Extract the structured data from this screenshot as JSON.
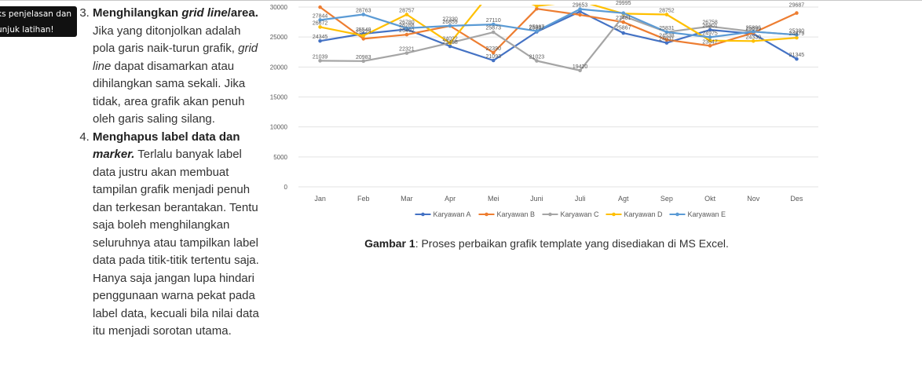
{
  "tooltip": {
    "line1": "ks penjelasan dan",
    "line2": "unjuk latihan!"
  },
  "article": {
    "item3_title": "Menghilangkan",
    "item3_title_em": "grid line",
    "item3_title_tail": "/area.",
    "item3_body_a": "Jika yang ditonjolkan adalah pola garis naik-turun grafik,",
    "item3_body_em": "grid line",
    "item3_body_b": "dapat disamarkan atau dihilangkan sama sekali. Jika tidak, area grafik akan penuh oleh garis saling silang.",
    "item4_title": "Menghapus label data dan",
    "item4_title_em": "marker.",
    "item4_body": "Terlalu banyak label data justru akan membuat tampilan grafik menjadi penuh dan terkesan berantakan. Tentu saja boleh menghilangkan seluruhnya atau tampilkan label data pada titik-titik tertentu saja. Hanya saja jangan lupa hindari penggunaan warna pekat pada label data, kecuali bila nilai data itu menjadi sorotan utama."
  },
  "caption": {
    "label": "Gambar 1",
    "text": ": Proses perbaikan grafik template yang disediakan di MS Excel."
  },
  "chart_data": {
    "type": "line",
    "categories": [
      "Jan",
      "Feb",
      "Mar",
      "Apr",
      "Mei",
      "Juni",
      "Juli",
      "Agt",
      "Sep",
      "Okt",
      "Nov",
      "Des"
    ],
    "ylim": [
      0,
      30000
    ],
    "yticks": [
      0,
      5000,
      10000,
      15000,
      20000,
      25000,
      30000
    ],
    "grid": true,
    "legend": "bottom",
    "series": [
      {
        "name": "Karyawan A",
        "color": "#4472c4",
        "values": [
          24345,
          25549,
          26288,
          23458,
          21093,
          25873,
          29258,
          25667,
          24031,
          26201,
          25535,
          21345
        ]
      },
      {
        "name": "Karyawan B",
        "color": "#ed7d31",
        "values": [
          29984,
          24707,
          25402,
          26859,
          22390,
          29710,
          28700,
          27481,
          24538,
          23547,
          25699,
          29007
        ]
      },
      {
        "name": "Karyawan C",
        "color": "#a5a5a5",
        "values": [
          21039,
          20983,
          22321,
          24022,
          25800,
          21023,
          19420,
          28500,
          25831,
          26758,
          25899,
          25380
        ]
      },
      {
        "name": "Karyawan D",
        "color": "#ffc000",
        "values": [
          26672,
          25225,
          28757,
          24000,
          33000,
          30200,
          31000,
          28900,
          28752,
          24400,
          24330,
          24879
        ]
      },
      {
        "name": "Karyawan E",
        "color": "#5b9bd5",
        "values": [
          27844,
          28763,
          26480,
          26869,
          27110,
          25987,
          29653,
          28995,
          25831,
          24975,
          25899,
          25380
        ]
      }
    ],
    "data_labels": [
      {
        "x": 0,
        "y": 27844,
        "t": "27844"
      },
      {
        "x": 0,
        "y": 26672,
        "t": "26672"
      },
      {
        "x": 0,
        "y": 24345,
        "t": "24345"
      },
      {
        "x": 0,
        "y": 21039,
        "t": "21039"
      },
      {
        "x": 1,
        "y": 28763,
        "t": "28763"
      },
      {
        "x": 1,
        "y": 25549,
        "t": "25549"
      },
      {
        "x": 1,
        "y": 25225,
        "t": "25225"
      },
      {
        "x": 1,
        "y": 20983,
        "t": "20983"
      },
      {
        "x": 2,
        "y": 28757,
        "t": "28757"
      },
      {
        "x": 2,
        "y": 26780,
        "t": "26780"
      },
      {
        "x": 2,
        "y": 26288,
        "t": "26288"
      },
      {
        "x": 2,
        "y": 25402,
        "t": "25402"
      },
      {
        "x": 2,
        "y": 22321,
        "t": "22321"
      },
      {
        "x": 3,
        "y": 27330,
        "t": "27330"
      },
      {
        "x": 3,
        "y": 26859,
        "t": "26859"
      },
      {
        "x": 3,
        "y": 24022,
        "t": "24022"
      },
      {
        "x": 3,
        "y": 23458,
        "t": "23458"
      },
      {
        "x": 4,
        "y": 27110,
        "t": "27110"
      },
      {
        "x": 4,
        "y": 25873,
        "t": "25873"
      },
      {
        "x": 4,
        "y": 22390,
        "t": "22390"
      },
      {
        "x": 4,
        "y": 21093,
        "t": "21093"
      },
      {
        "x": 5,
        "y": 25987,
        "t": "25987"
      },
      {
        "x": 5,
        "y": 25882,
        "t": "25882"
      },
      {
        "x": 5,
        "y": 21023,
        "t": "21023"
      },
      {
        "x": 6,
        "y": 29653,
        "t": "29653"
      },
      {
        "x": 6,
        "y": 19420,
        "t": "19420"
      },
      {
        "x": 7,
        "y": 29995,
        "t": "29995"
      },
      {
        "x": 7,
        "y": 27481,
        "t": "27481"
      },
      {
        "x": 7,
        "y": 25867,
        "t": "25867"
      },
      {
        "x": 8,
        "y": 28752,
        "t": "28752"
      },
      {
        "x": 8,
        "y": 25831,
        "t": "25831"
      },
      {
        "x": 8,
        "y": 24538,
        "t": "24538"
      },
      {
        "x": 8,
        "y": 24031,
        "t": "24031"
      },
      {
        "x": 9,
        "y": 26758,
        "t": "26758"
      },
      {
        "x": 9,
        "y": 26201,
        "t": "26201"
      },
      {
        "x": 9,
        "y": 24975,
        "t": "24975"
      },
      {
        "x": 9,
        "y": 23547,
        "t": "23547"
      },
      {
        "x": 10,
        "y": 25896,
        "t": "25896"
      },
      {
        "x": 10,
        "y": 25699,
        "t": "25699"
      },
      {
        "x": 10,
        "y": 24330,
        "t": "24330"
      },
      {
        "x": 11,
        "y": 29687,
        "t": "29687"
      },
      {
        "x": 11,
        "y": 25380,
        "t": "25380"
      },
      {
        "x": 11,
        "y": 24879,
        "t": "24879"
      },
      {
        "x": 11,
        "y": 21345,
        "t": "21345"
      }
    ]
  }
}
